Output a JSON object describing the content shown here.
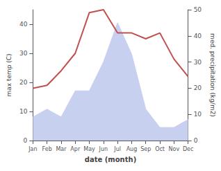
{
  "chart_data": {
    "type": "line",
    "categories": [
      "Jan",
      "Feb",
      "Mar",
      "Apr",
      "May",
      "Jun",
      "Jul",
      "Aug",
      "Sep",
      "Oct",
      "Nov",
      "Dec"
    ],
    "xlabel": "date (month)",
    "ylabel": "max temp (C)",
    "y2label": "med. precipitation (kg/m2)",
    "ylim": [
      0,
      45
    ],
    "yticks": [
      0,
      10,
      20,
      30,
      40
    ],
    "y2lim": [
      0,
      50
    ],
    "y2ticks": [
      0,
      10,
      20,
      30,
      40,
      50
    ],
    "grid": false,
    "series": [
      {
        "type": "area",
        "axis": "y2",
        "color": "#c8d0f0",
        "values": [
          9,
          12,
          9,
          19,
          19,
          30,
          45,
          33,
          12,
          5,
          5,
          8
        ]
      },
      {
        "type": "line",
        "color": "#c0504d",
        "values": [
          18,
          19,
          24,
          30,
          44,
          45,
          37,
          37,
          35,
          37,
          28,
          22
        ]
      }
    ]
  }
}
